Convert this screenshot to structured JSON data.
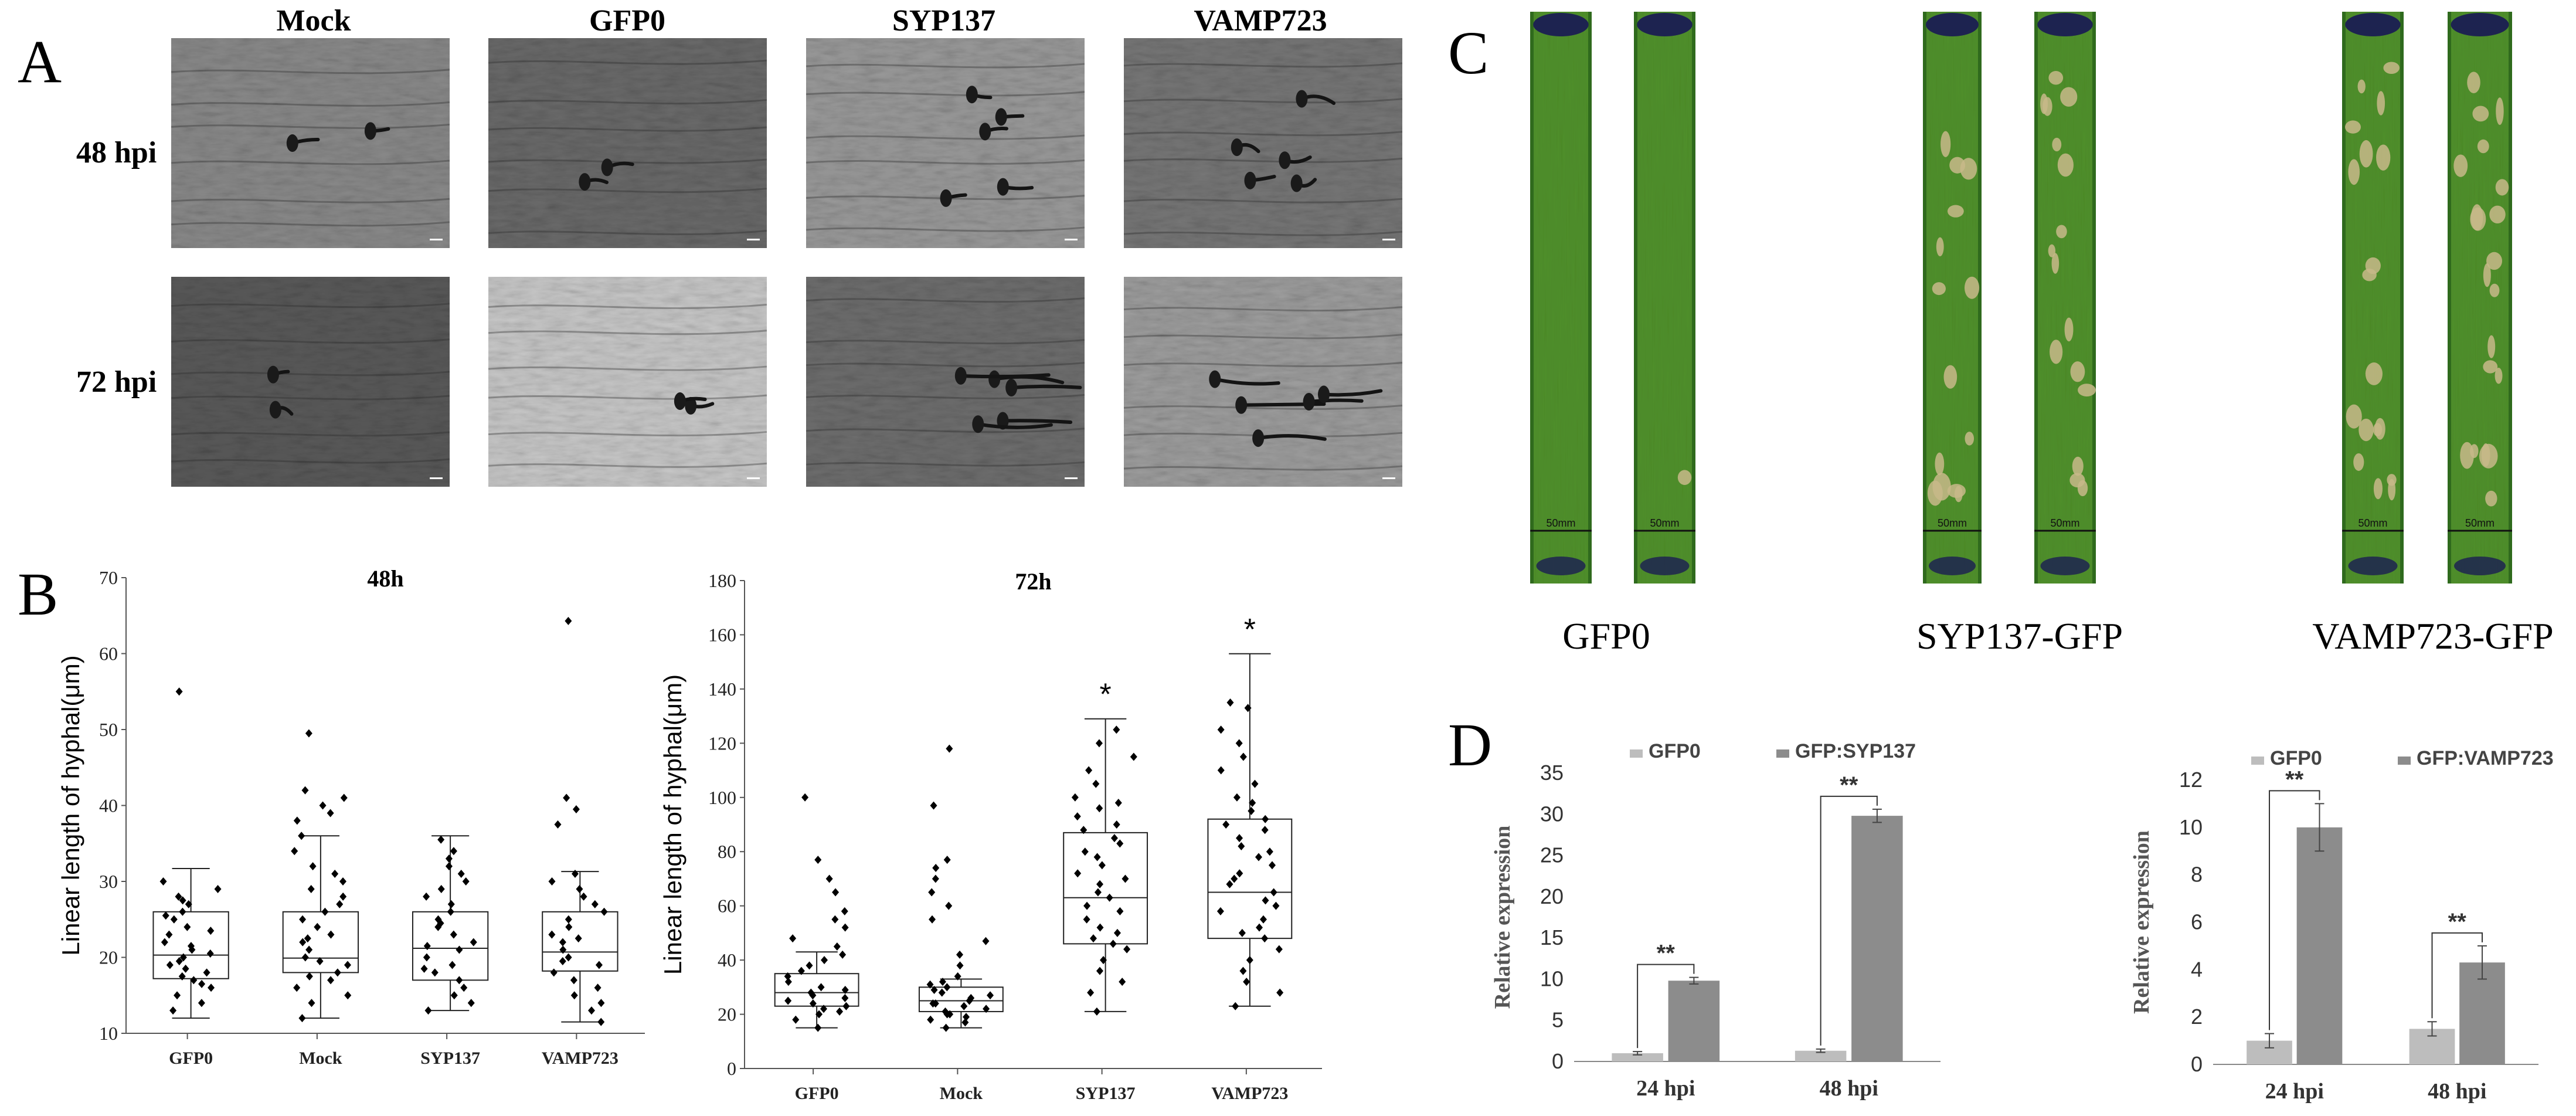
{
  "figure": {
    "panels": {
      "a": "A",
      "b": "B",
      "c": "C",
      "d": "D"
    },
    "micrographs": {
      "columns": [
        "Mock",
        "GFP0",
        "SYP137",
        "VAMP723"
      ],
      "rows": [
        "48 hpi",
        "72 hpi"
      ]
    },
    "leaves": {
      "groups": [
        "GFP0",
        "SYP137-GFP",
        "VAMP723-GFP"
      ],
      "scale_label": "50mm",
      "colors": {
        "healthy": "#4f8f2a",
        "dark": "#2f6a1d",
        "lesion": "#c8b98a",
        "inoculum": "#1d2350"
      }
    }
  },
  "chart_data": [
    {
      "type": "box",
      "title": "48h",
      "ylabel": "Linear length of hyphal(μm)",
      "ylim": [
        10,
        70
      ],
      "yticks": [
        10,
        20,
        30,
        40,
        50,
        60,
        70
      ],
      "categories": [
        "GFP0",
        "Mock",
        "SYP137",
        "VAMP723"
      ],
      "boxes": [
        {
          "whisker_low": 12,
          "q1": 17.2,
          "median": 20.3,
          "q3": 26,
          "whisker_high": 31.7,
          "outliers": [
            55
          ]
        },
        {
          "whisker_low": 12,
          "q1": 18,
          "median": 19.9,
          "q3": 26,
          "whisker_high": 36,
          "outliers": [
            49.5
          ]
        },
        {
          "whisker_low": 13,
          "q1": 17,
          "median": 21.2,
          "q3": 26,
          "whisker_high": 36,
          "outliers": []
        },
        {
          "whisker_low": 11.5,
          "q1": 18.2,
          "median": 20.7,
          "q3": 26,
          "whisker_high": 31.3,
          "outliers": [
            64.3
          ]
        }
      ],
      "points": [
        [
          13,
          14,
          15,
          16,
          17,
          17.5,
          18,
          19,
          19.5,
          20,
          20.5,
          21,
          22,
          23,
          24,
          25,
          26,
          27,
          28,
          29,
          30,
          16.5,
          18.5,
          21.5,
          23.5,
          25.5,
          27.5
        ],
        [
          12,
          14,
          15,
          16,
          17,
          18,
          19,
          19.5,
          20,
          21,
          22,
          23,
          24,
          25,
          26,
          27,
          28,
          29,
          30,
          31,
          32,
          34,
          36,
          38,
          39,
          40,
          41,
          42,
          17.5,
          22.5
        ],
        [
          13,
          14,
          15,
          16,
          17,
          18,
          19,
          20,
          21,
          22,
          23,
          24,
          25,
          26,
          27,
          28,
          29,
          30,
          31,
          32,
          33,
          34,
          35.5,
          18.5,
          21.5,
          24.5
        ],
        [
          11.5,
          13,
          14,
          15,
          16,
          17,
          18,
          19,
          20,
          21,
          22,
          23,
          24,
          25,
          26,
          27,
          28,
          29,
          30,
          31,
          37.5,
          39.5,
          41,
          19.5,
          22.5
        ]
      ]
    },
    {
      "type": "box",
      "title": "72h",
      "ylabel": "Linear length of hyphal(μm)",
      "ylim": [
        0,
        180
      ],
      "yticks": [
        0,
        20,
        40,
        60,
        80,
        100,
        120,
        140,
        160,
        180
      ],
      "categories": [
        "GFP0",
        "Mock",
        "SYP137",
        "VAMP723"
      ],
      "boxes": [
        {
          "whisker_low": 15,
          "q1": 23,
          "median": 28,
          "q3": 35,
          "whisker_high": 43,
          "outliers": [
            100
          ],
          "significant": false
        },
        {
          "whisker_low": 15,
          "q1": 21,
          "median": 25,
          "q3": 30,
          "whisker_high": 33,
          "outliers": [
            118
          ],
          "significant": false
        },
        {
          "whisker_low": 21,
          "q1": 46,
          "median": 63,
          "q3": 87,
          "whisker_high": 129,
          "outliers": [],
          "significant": true
        },
        {
          "whisker_low": 23,
          "q1": 48,
          "median": 65,
          "q3": 92,
          "whisker_high": 153,
          "outliers": [],
          "significant": true
        }
      ],
      "significance_mark": "*",
      "points": [
        [
          15,
          18,
          20,
          22,
          24,
          25,
          26,
          27,
          28,
          29,
          30,
          32,
          34,
          36,
          38,
          40,
          42,
          45,
          48,
          52,
          55,
          58,
          65,
          70,
          77,
          21,
          23
        ],
        [
          15,
          17,
          18,
          19,
          20,
          21,
          22,
          23,
          24,
          25,
          26,
          27,
          28,
          29,
          30,
          31,
          32,
          34,
          38,
          42,
          47,
          55,
          60,
          65,
          70,
          74,
          77,
          97,
          20,
          24
        ],
        [
          21,
          28,
          32,
          36,
          40,
          44,
          46,
          48,
          50,
          52,
          55,
          58,
          60,
          63,
          65,
          68,
          70,
          72,
          75,
          78,
          80,
          83,
          85,
          88,
          90,
          93,
          96,
          98,
          100,
          105,
          110,
          115,
          120,
          125
        ],
        [
          23,
          28,
          32,
          36,
          40,
          44,
          48,
          50,
          52,
          55,
          58,
          60,
          62,
          65,
          68,
          70,
          72,
          75,
          78,
          80,
          82,
          85,
          88,
          90,
          92,
          95,
          98,
          100,
          105,
          110,
          115,
          120,
          125,
          133,
          135
        ]
      ]
    },
    {
      "type": "bar",
      "ylabel": "Relative expression",
      "ylim": [
        0,
        35
      ],
      "yticks": [
        0,
        5,
        10,
        15,
        20,
        25,
        30,
        35
      ],
      "categories": [
        "24 hpi",
        "48 hpi"
      ],
      "series": [
        {
          "name": "GFP0",
          "values": [
            1.0,
            1.3
          ],
          "errors": [
            0.2,
            0.2
          ],
          "color": "#bdbdbd"
        },
        {
          "name": "GFP:SYP137",
          "values": [
            9.8,
            29.8
          ],
          "errors": [
            0.4,
            0.8
          ],
          "color": "#8c8c8c"
        }
      ],
      "significance": [
        "**",
        "**"
      ]
    },
    {
      "type": "bar",
      "ylabel": "Relative expression",
      "ylim": [
        0,
        12
      ],
      "yticks": [
        0,
        2,
        4,
        6,
        8,
        10,
        12
      ],
      "categories": [
        "24 hpi",
        "48 hpi"
      ],
      "series": [
        {
          "name": "GFP0",
          "values": [
            1.0,
            1.5
          ],
          "errors": [
            0.3,
            0.3
          ],
          "color": "#bdbdbd"
        },
        {
          "name": "GFP:VAMP723",
          "values": [
            10.0,
            4.3
          ],
          "errors": [
            1.0,
            0.7
          ],
          "color": "#8c8c8c"
        }
      ],
      "significance": [
        "**",
        "**"
      ]
    }
  ]
}
